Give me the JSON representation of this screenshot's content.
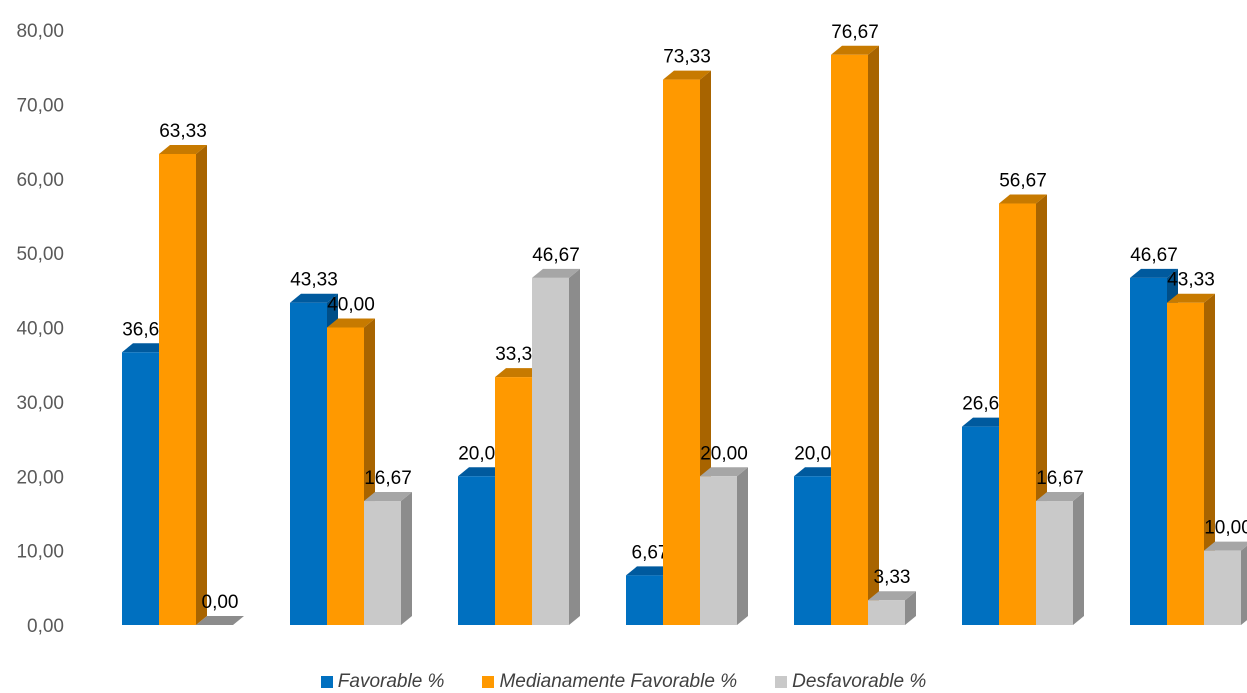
{
  "chart_data": {
    "type": "bar",
    "ylim": [
      0,
      80
    ],
    "yticks": [
      "0,00",
      "10,00",
      "20,00",
      "30,00",
      "40,00",
      "50,00",
      "60,00",
      "70,00",
      "80,00"
    ],
    "categories": [
      "",
      "",
      "",
      "",
      "",
      "",
      ""
    ],
    "series": [
      {
        "name": "Favorable %",
        "values": [
          36.67,
          43.33,
          20.0,
          6.67,
          20.0,
          26.67,
          46.67
        ],
        "labels": [
          "36,67",
          "43,33",
          "20,00",
          "6,67",
          "20,00",
          "26,67",
          "46,67"
        ],
        "color": "#0070C0",
        "side": "#004E87",
        "top": "#005A9E"
      },
      {
        "name": "Medianamente Favorable %",
        "values": [
          63.33,
          40.0,
          33.33,
          73.33,
          76.67,
          56.67,
          43.33
        ],
        "labels": [
          "63,33",
          "40,00",
          "33,33",
          "73,33",
          "76,67",
          "56,67",
          "43,33"
        ],
        "color": "#FF9900",
        "side": "#A86400",
        "top": "#C77A00"
      },
      {
        "name": "Desfavorable %",
        "values": [
          0.0,
          16.67,
          46.67,
          20.0,
          3.33,
          16.67,
          10.0
        ],
        "labels": [
          "0,00",
          "16,67",
          "46,67",
          "20,00",
          "3,33",
          "16,67",
          "10,00"
        ],
        "color": "#C9C9C9",
        "side": "#8C8C8C",
        "top": "#A6A6A6"
      }
    ],
    "legend_position": "bottom",
    "grid": false
  }
}
